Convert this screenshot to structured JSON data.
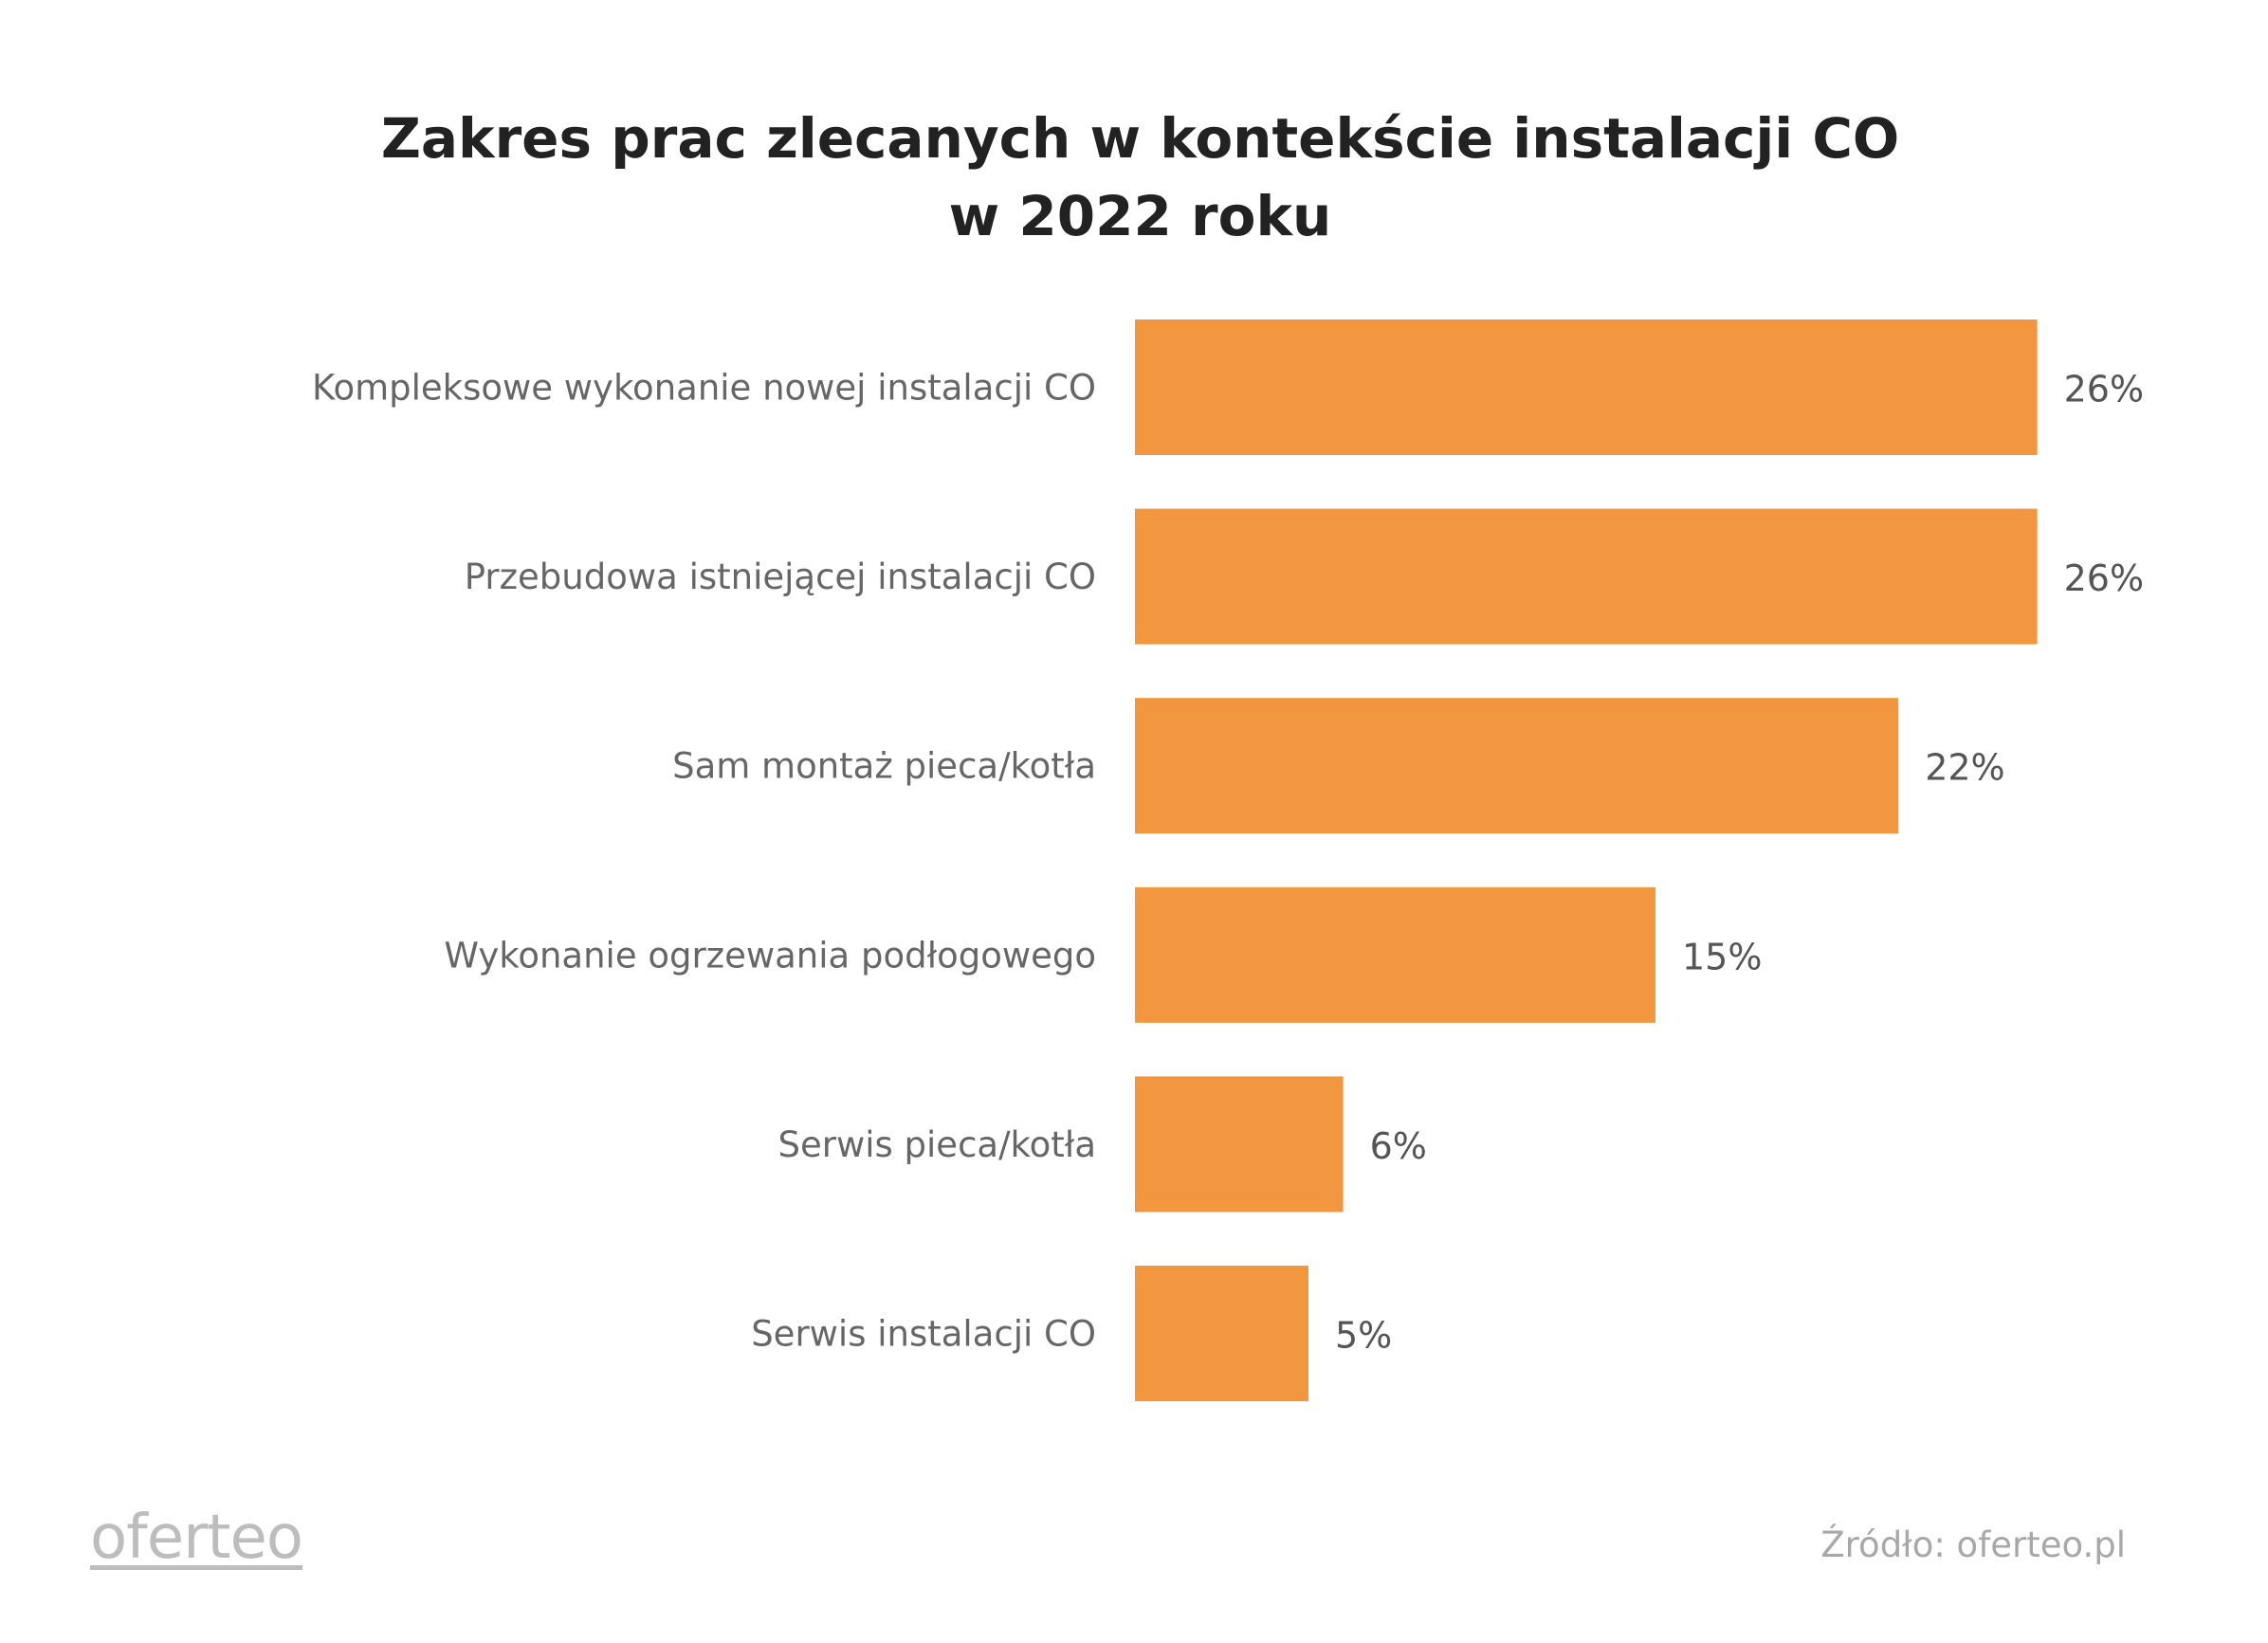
{
  "chart_data": {
    "type": "bar",
    "orientation": "horizontal",
    "title": [
      "Zakres prac zlecanych w kontekście instalacji CO",
      "w 2022 roku"
    ],
    "categories": [
      "Kompleksowe wykonanie nowej instalacji CO",
      "Przebudowa istniejącej instalacji CO",
      "Sam montaż pieca/kotła",
      "Wykonanie ogrzewania podłogowego",
      "Serwis pieca/kotła",
      "Serwis instalacji CO"
    ],
    "values": [
      26,
      26,
      22,
      15,
      6,
      5
    ],
    "value_labels": [
      "26%",
      "26%",
      "22%",
      "15%",
      "6%",
      "5%"
    ],
    "unit": "%",
    "xlabel": "",
    "ylabel": "",
    "grid": false,
    "bar_color": "#f2963f"
  },
  "footer": {
    "logo": "oferteo",
    "source": "Źródło: oferteo.pl"
  }
}
